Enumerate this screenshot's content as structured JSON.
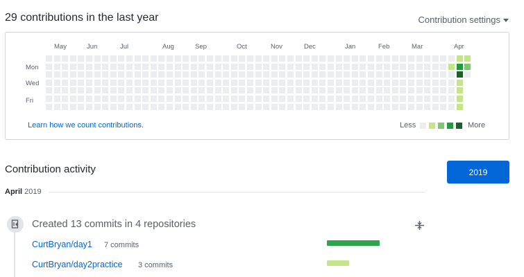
{
  "header": {
    "title": "29 contributions in the last year",
    "settings_label": "Contribution settings"
  },
  "graph": {
    "months": [
      "May",
      "Jun",
      "Jul",
      "Aug",
      "Sep",
      "Oct",
      "Nov",
      "Dec",
      "Jan",
      "Feb",
      "Mar",
      "Apr"
    ],
    "day_labels": [
      "Mon",
      "Wed",
      "Fri"
    ],
    "learn_link": "Learn how we count contributions.",
    "legend_less": "Less",
    "legend_more": "More",
    "colors": [
      "#ebedf0",
      "#c6e48b",
      "#7bc96f",
      "#239a3b",
      "#196127"
    ],
    "recent_levels": [
      [
        0,
        1,
        0,
        0,
        0,
        0,
        0
      ],
      [
        1,
        3,
        4,
        1,
        1,
        1,
        1
      ],
      [
        1,
        2,
        0,
        0,
        0,
        0,
        0
      ]
    ]
  },
  "activity": {
    "title": "Contribution activity",
    "year_button": "2019",
    "month": "April",
    "year": "2019",
    "summary": "Created 13 commits in 4 repositories",
    "repos": [
      {
        "name": "CurtBryan/day1",
        "count": "7 commits",
        "share": 0.7,
        "color": "#2ea44f"
      },
      {
        "name": "CurtBryan/day2practice",
        "count": "3 commits",
        "share": 0.3,
        "color": "#c6e48b"
      }
    ]
  }
}
